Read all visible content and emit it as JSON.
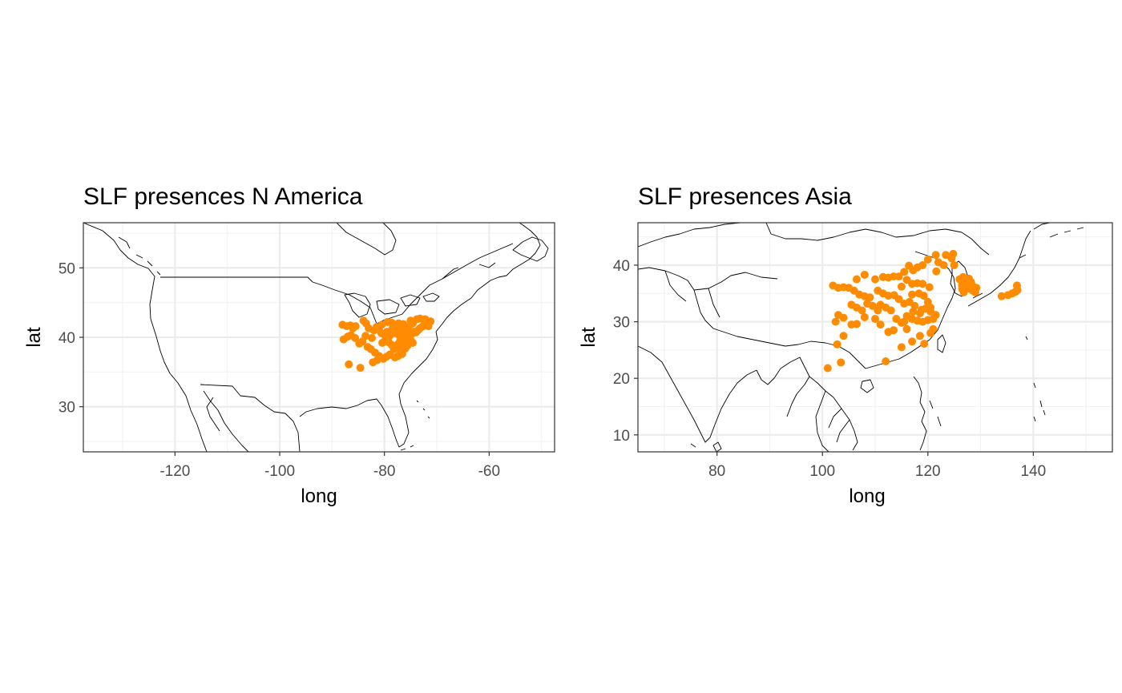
{
  "point_color": "#ff8c00",
  "panels": [
    {
      "title": "SLF presences N America",
      "xlabel": "long",
      "ylabel": "lat",
      "xlim": [
        -137.5,
        -47.5
      ],
      "ylim": [
        23.5,
        56.5
      ],
      "xticks": [
        -120,
        -100,
        -80,
        -60
      ],
      "yticks": [
        30,
        40,
        50
      ],
      "xtick_labels": [
        "-120",
        "-100",
        "-80",
        "-60"
      ],
      "ytick_labels": [
        "30",
        "40",
        "50"
      ]
    },
    {
      "title": "SLF presences Asia",
      "xlabel": "long",
      "ylabel": "lat",
      "xlim": [
        65,
        155
      ],
      "ylim": [
        7,
        47.5
      ],
      "xticks": [
        80,
        100,
        120,
        140
      ],
      "yticks": [
        10,
        20,
        30,
        40
      ],
      "xtick_labels": [
        "80",
        "100",
        "120",
        "140"
      ],
      "ytick_labels": [
        "10",
        "20",
        "30",
        "40"
      ]
    }
  ],
  "chart_data": [
    {
      "type": "scatter",
      "title": "SLF presences N America",
      "xlabel": "long",
      "ylabel": "lat",
      "xlim": [
        -137.5,
        -47.5
      ],
      "ylim": [
        23.5,
        56.5
      ],
      "grid": true,
      "basemap": "world coastlines and borders",
      "points": [
        [
          -88.0,
          41.8
        ],
        [
          -87.2,
          41.6
        ],
        [
          -86.5,
          41.7
        ],
        [
          -86.0,
          41.3
        ],
        [
          -85.5,
          41.6
        ],
        [
          -84.0,
          42.4
        ],
        [
          -83.5,
          42.0
        ],
        [
          -83.0,
          41.3
        ],
        [
          -82.0,
          41.0
        ],
        [
          -81.5,
          41.5
        ],
        [
          -81.0,
          41.1
        ],
        [
          -80.5,
          41.8
        ],
        [
          -80.0,
          40.4
        ],
        [
          -79.5,
          40.8
        ],
        [
          -79.0,
          40.2
        ],
        [
          -78.5,
          41.2
        ],
        [
          -78.0,
          40.6
        ],
        [
          -77.6,
          40.9
        ],
        [
          -77.2,
          40.3
        ],
        [
          -76.8,
          40.9
        ],
        [
          -76.4,
          40.2
        ],
        [
          -76.0,
          40.6
        ],
        [
          -75.6,
          40.4
        ],
        [
          -75.2,
          40.9
        ],
        [
          -74.8,
          40.5
        ],
        [
          -74.4,
          40.8
        ],
        [
          -74.0,
          40.7
        ],
        [
          -73.6,
          41.0
        ],
        [
          -73.2,
          41.3
        ],
        [
          -72.8,
          41.5
        ],
        [
          -72.4,
          41.8
        ],
        [
          -72.0,
          42.2
        ],
        [
          -71.6,
          42.1
        ],
        [
          -71.2,
          42.3
        ],
        [
          -73.8,
          42.6
        ],
        [
          -74.6,
          42.0
        ],
        [
          -75.4,
          41.5
        ],
        [
          -76.2,
          41.3
        ],
        [
          -77.0,
          41.6
        ],
        [
          -77.8,
          41.7
        ],
        [
          -78.6,
          42.1
        ],
        [
          -79.4,
          42.2
        ],
        [
          -77.0,
          39.5
        ],
        [
          -76.6,
          39.3
        ],
        [
          -76.2,
          39.0
        ],
        [
          -75.8,
          39.6
        ],
        [
          -75.3,
          39.8
        ],
        [
          -74.9,
          39.5
        ],
        [
          -77.4,
          39.0
        ],
        [
          -77.8,
          38.7
        ],
        [
          -78.2,
          38.3
        ],
        [
          -78.6,
          38.9
        ],
        [
          -79.2,
          39.3
        ],
        [
          -79.8,
          39.6
        ],
        [
          -80.4,
          39.2
        ],
        [
          -77.0,
          38.2
        ],
        [
          -76.6,
          37.6
        ],
        [
          -77.4,
          37.3
        ],
        [
          -78.0,
          37.1
        ],
        [
          -79.0,
          37.5
        ],
        [
          -79.6,
          37.2
        ],
        [
          -80.2,
          36.9
        ],
        [
          -81.0,
          37.3
        ],
        [
          -81.8,
          37.8
        ],
        [
          -82.6,
          38.3
        ],
        [
          -83.2,
          38.6
        ],
        [
          -84.2,
          39.4
        ],
        [
          -84.8,
          39.1
        ],
        [
          -85.6,
          39.9
        ],
        [
          -86.4,
          40.3
        ],
        [
          -87.0,
          40.1
        ],
        [
          -87.8,
          39.7
        ],
        [
          -86.8,
          36.1
        ],
        [
          -84.6,
          35.6
        ],
        [
          -82.2,
          36.4
        ],
        [
          -81.4,
          36.7
        ],
        [
          -76.0,
          38.4
        ],
        [
          -75.6,
          38.8
        ],
        [
          -74.6,
          39.2
        ],
        [
          -76.4,
          41.9
        ],
        [
          -75.0,
          42.4
        ],
        [
          -73.2,
          42.7
        ],
        [
          -72.2,
          42.6
        ],
        [
          -71.6,
          41.6
        ],
        [
          -77.3,
          42.0
        ],
        [
          -80.6,
          40.6
        ],
        [
          -82.4,
          39.9
        ],
        [
          -83.6,
          40.2
        ],
        [
          -76.8,
          40.0
        ],
        [
          -75.9,
          40.1
        ]
      ]
    },
    {
      "type": "scatter",
      "title": "SLF presences Asia",
      "xlabel": "long",
      "ylabel": "lat",
      "xlim": [
        65,
        155
      ],
      "ylim": [
        7,
        47.5
      ],
      "grid": true,
      "basemap": "world coastlines and borders",
      "points": [
        [
          101.0,
          21.8
        ],
        [
          103.5,
          22.8
        ],
        [
          112.0,
          23.0
        ],
        [
          102.8,
          26.0
        ],
        [
          104.0,
          27.5
        ],
        [
          105.5,
          29.5
        ],
        [
          104.0,
          30.7
        ],
        [
          102.5,
          30.0
        ],
        [
          103.0,
          31.2
        ],
        [
          106.5,
          29.6
        ],
        [
          108.0,
          30.8
        ],
        [
          110.0,
          30.5
        ],
        [
          111.0,
          29.5
        ],
        [
          112.5,
          28.2
        ],
        [
          113.5,
          28.5
        ],
        [
          114.0,
          30.5
        ],
        [
          115.0,
          29.8
        ],
        [
          116.0,
          28.7
        ],
        [
          117.0,
          30.5
        ],
        [
          118.0,
          30.2
        ],
        [
          119.0,
          30.0
        ],
        [
          120.0,
          30.3
        ],
        [
          121.0,
          30.5
        ],
        [
          121.5,
          31.2
        ],
        [
          120.5,
          31.8
        ],
        [
          119.5,
          32.3
        ],
        [
          118.8,
          32.1
        ],
        [
          117.5,
          32.8
        ],
        [
          116.5,
          33.5
        ],
        [
          115.5,
          33.2
        ],
        [
          114.5,
          34.0
        ],
        [
          113.6,
          34.7
        ],
        [
          112.5,
          34.6
        ],
        [
          111.5,
          35.0
        ],
        [
          110.5,
          35.5
        ],
        [
          109.0,
          34.3
        ],
        [
          108.0,
          34.5
        ],
        [
          107.0,
          34.8
        ],
        [
          106.0,
          35.5
        ],
        [
          105.0,
          36.0
        ],
        [
          104.0,
          36.1
        ],
        [
          103.0,
          36.0
        ],
        [
          102.0,
          36.4
        ],
        [
          106.5,
          37.5
        ],
        [
          108.0,
          38.3
        ],
        [
          110.0,
          37.5
        ],
        [
          111.5,
          37.9
        ],
        [
          112.5,
          37.8
        ],
        [
          113.5,
          38.0
        ],
        [
          114.5,
          38.0
        ],
        [
          115.5,
          38.8
        ],
        [
          116.4,
          39.9
        ],
        [
          117.2,
          39.1
        ],
        [
          118.0,
          39.6
        ],
        [
          119.0,
          40.0
        ],
        [
          120.0,
          41.0
        ],
        [
          121.5,
          41.8
        ],
        [
          123.4,
          41.8
        ],
        [
          122.0,
          40.5
        ],
        [
          121.6,
          38.9
        ],
        [
          120.3,
          36.1
        ],
        [
          119.0,
          36.7
        ],
        [
          118.0,
          36.8
        ],
        [
          117.0,
          36.7
        ],
        [
          116.0,
          37.4
        ],
        [
          115.0,
          36.2
        ],
        [
          117.0,
          34.8
        ],
        [
          118.3,
          35.0
        ],
        [
          119.2,
          34.6
        ],
        [
          120.0,
          33.5
        ],
        [
          120.5,
          32.5
        ],
        [
          118.5,
          31.5
        ],
        [
          117.2,
          31.8
        ],
        [
          116.0,
          31.0
        ],
        [
          115.5,
          30.0
        ],
        [
          113.0,
          32.0
        ],
        [
          112.0,
          32.5
        ],
        [
          111.0,
          33.0
        ],
        [
          110.5,
          32.0
        ],
        [
          109.5,
          32.8
        ],
        [
          108.5,
          33.2
        ],
        [
          107.5,
          32.0
        ],
        [
          106.5,
          32.5
        ],
        [
          105.5,
          33.0
        ],
        [
          115.0,
          25.5
        ],
        [
          117.0,
          26.5
        ],
        [
          119.3,
          26.1
        ],
        [
          120.5,
          28.0
        ],
        [
          121.0,
          28.7
        ],
        [
          118.5,
          27.5
        ],
        [
          126.0,
          37.5
        ],
        [
          126.5,
          36.5
        ],
        [
          127.0,
          37.2
        ],
        [
          127.5,
          36.3
        ],
        [
          128.0,
          35.8
        ],
        [
          128.5,
          35.5
        ],
        [
          129.0,
          35.2
        ],
        [
          126.8,
          35.2
        ],
        [
          127.2,
          35.8
        ],
        [
          128.2,
          37.0
        ],
        [
          127.8,
          37.6
        ],
        [
          126.7,
          37.9
        ],
        [
          127.0,
          36.8
        ],
        [
          128.6,
          36.2
        ],
        [
          129.2,
          36.0
        ],
        [
          126.5,
          35.8
        ],
        [
          135.2,
          34.7
        ],
        [
          136.0,
          35.0
        ],
        [
          136.6,
          35.3
        ],
        [
          137.0,
          35.6
        ],
        [
          136.9,
          36.4
        ],
        [
          134.0,
          34.5
        ],
        [
          124.8,
          42.0
        ],
        [
          124.5,
          41.2
        ],
        [
          125.0,
          40.0
        ],
        [
          123.0,
          40.0
        ]
      ]
    }
  ]
}
